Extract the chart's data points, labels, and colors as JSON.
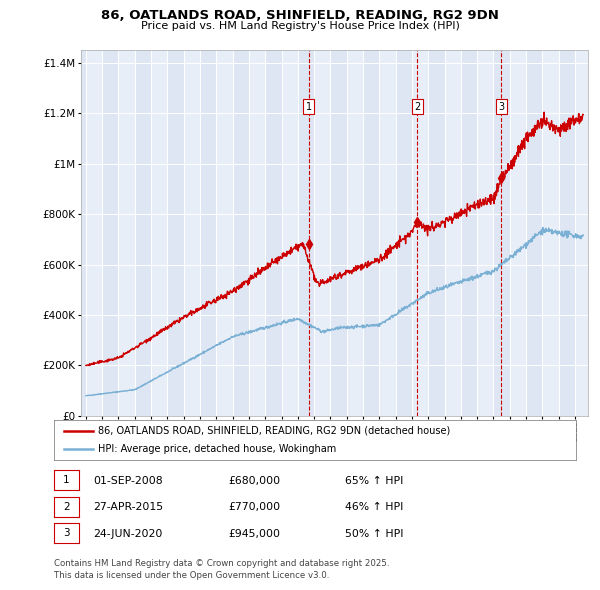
{
  "title_line1": "86, OATLANDS ROAD, SHINFIELD, READING, RG2 9DN",
  "title_line2": "Price paid vs. HM Land Registry's House Price Index (HPI)",
  "legend_red": "86, OATLANDS ROAD, SHINFIELD, READING, RG2 9DN (detached house)",
  "legend_blue": "HPI: Average price, detached house, Wokingham",
  "footer_line1": "Contains HM Land Registry data © Crown copyright and database right 2025.",
  "footer_line2": "This data is licensed under the Open Government Licence v3.0.",
  "transactions": [
    {
      "label": "1",
      "date": "01-SEP-2008",
      "price": "£680,000",
      "pct": "65% ↑ HPI"
    },
    {
      "label": "2",
      "date": "27-APR-2015",
      "price": "£770,000",
      "pct": "46% ↑ HPI"
    },
    {
      "label": "3",
      "date": "24-JUN-2020",
      "price": "£945,000",
      "pct": "50% ↑ HPI"
    }
  ],
  "transaction_dates_decimal": [
    2008.667,
    2015.319,
    2020.477
  ],
  "transaction_prices": [
    680000,
    770000,
    945000
  ],
  "red_color": "#cc0000",
  "blue_color": "#7ab0d4",
  "vline_color": "#cc0000",
  "plot_bg": "#e8eef8",
  "grid_color": "#ffffff",
  "ylim": [
    0,
    1450000
  ],
  "yticks": [
    0,
    200000,
    400000,
    600000,
    800000,
    1000000,
    1200000,
    1400000
  ],
  "xlim_start": 1994.7,
  "xlim_end": 2025.8
}
